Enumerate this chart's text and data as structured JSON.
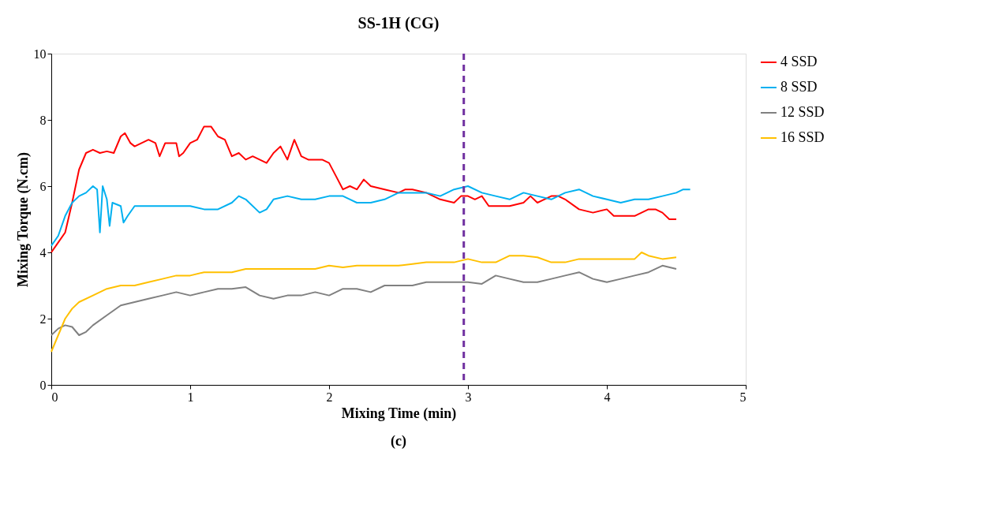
{
  "chart_data": {
    "type": "line",
    "title": "SS-1H (CG)",
    "xlabel": "Mixing Time (min)",
    "ylabel": "Mixing Torque (N.cm)",
    "annotations": [
      "(c)"
    ],
    "xlim": [
      0,
      5
    ],
    "xticks": [
      0,
      1,
      2,
      3,
      4,
      5
    ],
    "ylim": [
      0,
      10
    ],
    "yticks": [
      0,
      2,
      4,
      6,
      8,
      10
    ],
    "grid": false,
    "legend": "right",
    "marker": "none",
    "line_style": "solid",
    "ref_lines": [
      {
        "axis": "x",
        "value": 2.97,
        "color": "#7030a0",
        "line_style": "dashed"
      }
    ],
    "series": [
      {
        "name": "4 SSD",
        "color": "#ff0000",
        "x": [
          0,
          0.05,
          0.1,
          0.15,
          0.2,
          0.25,
          0.3,
          0.35,
          0.4,
          0.45,
          0.5,
          0.53,
          0.57,
          0.6,
          0.65,
          0.7,
          0.75,
          0.78,
          0.82,
          0.9,
          0.92,
          0.95,
          1.0,
          1.05,
          1.1,
          1.15,
          1.2,
          1.25,
          1.3,
          1.35,
          1.4,
          1.45,
          1.5,
          1.55,
          1.6,
          1.65,
          1.7,
          1.75,
          1.8,
          1.85,
          1.9,
          1.95,
          2.0,
          2.05,
          2.1,
          2.15,
          2.2,
          2.25,
          2.3,
          2.4,
          2.5,
          2.55,
          2.6,
          2.7,
          2.8,
          2.9,
          2.95,
          3.0,
          3.05,
          3.1,
          3.15,
          3.2,
          3.3,
          3.4,
          3.45,
          3.5,
          3.6,
          3.65,
          3.7,
          3.8,
          3.9,
          4.0,
          4.05,
          4.1,
          4.2,
          4.3,
          4.35,
          4.4,
          4.45,
          4.5
        ],
        "values": [
          4.0,
          4.3,
          4.6,
          5.5,
          6.5,
          7.0,
          7.1,
          7.0,
          7.05,
          7.0,
          7.5,
          7.6,
          7.3,
          7.2,
          7.3,
          7.4,
          7.3,
          6.9,
          7.3,
          7.3,
          6.9,
          7.0,
          7.3,
          7.4,
          7.8,
          7.8,
          7.5,
          7.4,
          6.9,
          7.0,
          6.8,
          6.9,
          6.8,
          6.7,
          7.0,
          7.2,
          6.8,
          7.4,
          6.9,
          6.8,
          6.8,
          6.8,
          6.7,
          6.3,
          5.9,
          6.0,
          5.9,
          6.2,
          6.0,
          5.9,
          5.8,
          5.9,
          5.9,
          5.8,
          5.6,
          5.5,
          5.7,
          5.7,
          5.6,
          5.7,
          5.4,
          5.4,
          5.4,
          5.5,
          5.7,
          5.5,
          5.7,
          5.7,
          5.6,
          5.3,
          5.2,
          5.3,
          5.1,
          5.1,
          5.1,
          5.3,
          5.3,
          5.2,
          5.0,
          5.0
        ]
      },
      {
        "name": "8 SSD",
        "color": "#00b0f0",
        "x": [
          0,
          0.05,
          0.1,
          0.15,
          0.2,
          0.25,
          0.3,
          0.33,
          0.35,
          0.37,
          0.4,
          0.42,
          0.44,
          0.5,
          0.52,
          0.55,
          0.6,
          0.7,
          0.8,
          0.9,
          1.0,
          1.1,
          1.2,
          1.3,
          1.35,
          1.4,
          1.5,
          1.55,
          1.6,
          1.7,
          1.8,
          1.9,
          2.0,
          2.1,
          2.2,
          2.3,
          2.4,
          2.5,
          2.6,
          2.7,
          2.8,
          2.9,
          3.0,
          3.1,
          3.2,
          3.3,
          3.4,
          3.5,
          3.6,
          3.7,
          3.8,
          3.9,
          4.0,
          4.1,
          4.2,
          4.3,
          4.4,
          4.5,
          4.55,
          4.6
        ],
        "values": [
          4.2,
          4.5,
          5.1,
          5.5,
          5.7,
          5.8,
          6.0,
          5.9,
          4.6,
          6.0,
          5.6,
          4.8,
          5.5,
          5.4,
          4.9,
          5.1,
          5.4,
          5.4,
          5.4,
          5.4,
          5.4,
          5.3,
          5.3,
          5.5,
          5.7,
          5.6,
          5.2,
          5.3,
          5.6,
          5.7,
          5.6,
          5.6,
          5.7,
          5.7,
          5.5,
          5.5,
          5.6,
          5.8,
          5.8,
          5.8,
          5.7,
          5.9,
          6.0,
          5.8,
          5.7,
          5.6,
          5.8,
          5.7,
          5.6,
          5.8,
          5.9,
          5.7,
          5.6,
          5.5,
          5.6,
          5.6,
          5.7,
          5.8,
          5.9,
          5.9
        ]
      },
      {
        "name": "12 SSD",
        "color": "#808080",
        "x": [
          0,
          0.05,
          0.1,
          0.15,
          0.2,
          0.25,
          0.3,
          0.4,
          0.5,
          0.6,
          0.7,
          0.8,
          0.9,
          1.0,
          1.1,
          1.2,
          1.3,
          1.4,
          1.5,
          1.6,
          1.7,
          1.8,
          1.9,
          2.0,
          2.1,
          2.2,
          2.3,
          2.4,
          2.5,
          2.6,
          2.7,
          2.8,
          2.9,
          3.0,
          3.1,
          3.2,
          3.3,
          3.4,
          3.5,
          3.6,
          3.7,
          3.8,
          3.9,
          4.0,
          4.1,
          4.2,
          4.3,
          4.4,
          4.5
        ],
        "values": [
          1.5,
          1.7,
          1.8,
          1.75,
          1.5,
          1.6,
          1.8,
          2.1,
          2.4,
          2.5,
          2.6,
          2.7,
          2.8,
          2.7,
          2.8,
          2.9,
          2.9,
          2.95,
          2.7,
          2.6,
          2.7,
          2.7,
          2.8,
          2.7,
          2.9,
          2.9,
          2.8,
          3.0,
          3.0,
          3.0,
          3.1,
          3.1,
          3.1,
          3.1,
          3.05,
          3.3,
          3.2,
          3.1,
          3.1,
          3.2,
          3.3,
          3.4,
          3.2,
          3.1,
          3.2,
          3.3,
          3.4,
          3.6,
          3.5
        ]
      },
      {
        "name": "16 SSD",
        "color": "#ffc000",
        "x": [
          0,
          0.05,
          0.1,
          0.15,
          0.2,
          0.3,
          0.4,
          0.5,
          0.6,
          0.7,
          0.8,
          0.9,
          1.0,
          1.1,
          1.2,
          1.3,
          1.4,
          1.5,
          1.6,
          1.7,
          1.8,
          1.9,
          2.0,
          2.1,
          2.2,
          2.3,
          2.4,
          2.5,
          2.6,
          2.7,
          2.8,
          2.9,
          3.0,
          3.1,
          3.2,
          3.3,
          3.4,
          3.5,
          3.6,
          3.7,
          3.8,
          3.9,
          4.0,
          4.1,
          4.2,
          4.25,
          4.3,
          4.4,
          4.5
        ],
        "values": [
          1.0,
          1.5,
          2.0,
          2.3,
          2.5,
          2.7,
          2.9,
          3.0,
          3.0,
          3.1,
          3.2,
          3.3,
          3.3,
          3.4,
          3.4,
          3.4,
          3.5,
          3.5,
          3.5,
          3.5,
          3.5,
          3.5,
          3.6,
          3.55,
          3.6,
          3.6,
          3.6,
          3.6,
          3.65,
          3.7,
          3.7,
          3.7,
          3.8,
          3.7,
          3.7,
          3.9,
          3.9,
          3.85,
          3.7,
          3.7,
          3.8,
          3.8,
          3.8,
          3.8,
          3.8,
          4.0,
          3.9,
          3.8,
          3.85
        ]
      }
    ]
  }
}
